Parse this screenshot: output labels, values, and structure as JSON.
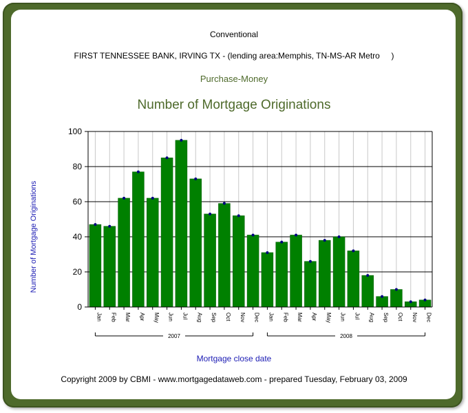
{
  "header": {
    "loan_type": "Conventional",
    "lender_line": "FIRST TENNESSEE BANK, IRVING TX - (lending area:Memphis, TN-MS-AR Metro     )",
    "purpose": "Purchase-Money"
  },
  "footer": {
    "copyright": "Copyright 2009 by CBMI - www.mortgagedataweb.com - prepared Tuesday, February 03, 2009"
  },
  "colors": {
    "bar": "#008000",
    "marker": "#000080",
    "frame": "#4e6a2b",
    "title": "#4e6a2b",
    "axis_title": "#1a1ab3"
  },
  "chart_data": {
    "type": "bar",
    "title": "Number of Mortgage Originations",
    "xlabel": "Mortgage close date",
    "ylabel": "Number of Mortgage Originations",
    "ylim": [
      0,
      100
    ],
    "yticks": [
      0,
      20,
      40,
      60,
      80,
      100
    ],
    "grid": true,
    "categories": [
      "Jan",
      "Feb",
      "Mar",
      "Apr",
      "May",
      "Jun",
      "Jul",
      "Aug",
      "Sep",
      "Oct",
      "Nov",
      "Dec",
      "Jan",
      "Feb",
      "Mar",
      "Apr",
      "May",
      "Jun",
      "Jul",
      "Aug",
      "Sep",
      "Oct",
      "Nov",
      "Dec"
    ],
    "values": [
      47,
      46,
      62,
      77,
      62,
      85,
      95,
      73,
      53,
      59,
      52,
      41,
      31,
      37,
      41,
      26,
      38,
      40,
      32,
      18,
      6,
      10,
      3,
      4
    ],
    "groups": [
      {
        "label": "2007",
        "count": 12
      },
      {
        "label": "2008",
        "count": 12
      }
    ]
  }
}
